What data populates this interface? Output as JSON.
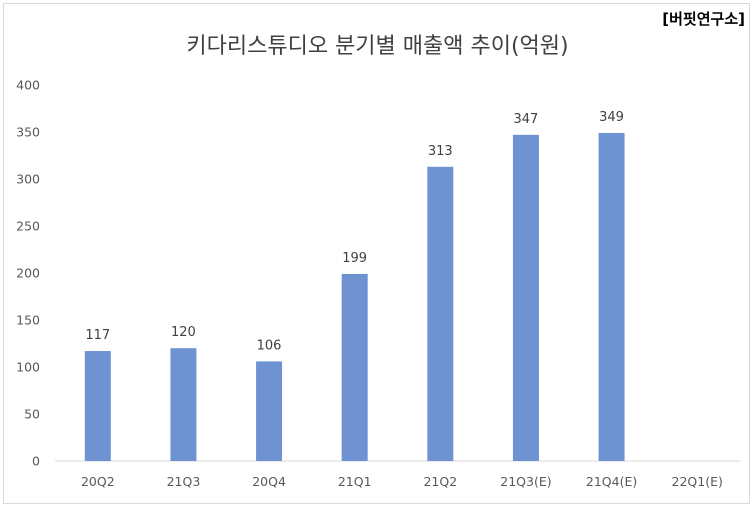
{
  "source_label": "[버핏연구소]",
  "chart_data": {
    "type": "bar",
    "title": "키다리스튜디오 분기별 매출액 추이(억원)",
    "categories": [
      "20Q2",
      "21Q3",
      "20Q4",
      "21Q1",
      "21Q2",
      "21Q3(E)",
      "21Q4(E)",
      "22Q1(E)"
    ],
    "values": [
      117,
      120,
      106,
      199,
      313,
      347,
      349,
      null
    ],
    "ylim": [
      0,
      400
    ],
    "yticks": [
      0,
      50,
      100,
      150,
      200,
      250,
      300,
      350,
      400
    ],
    "bar_color": "#6f92d3",
    "gridlines": false
  }
}
